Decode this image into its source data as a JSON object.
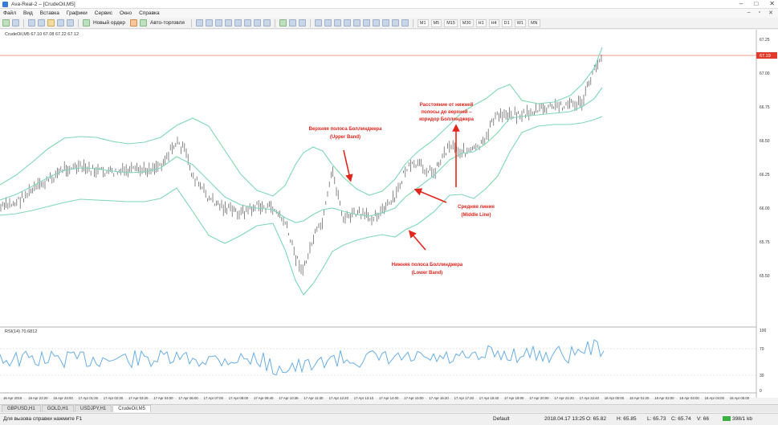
{
  "window": {
    "title": "Ava-Real-2 – [CrudeOil,M5]"
  },
  "menu": {
    "items": [
      "Файл",
      "Вид",
      "Вставка",
      "Графики",
      "Сервис",
      "Окно",
      "Справка"
    ]
  },
  "toolbar": {
    "new_order_label": "Новый ордер",
    "autotrade_label": "Авто-торговля",
    "timeframes": [
      "M1",
      "M5",
      "M15",
      "M30",
      "H1",
      "H4",
      "D1",
      "W1",
      "MN"
    ]
  },
  "chart": {
    "info_line": "CrudeOil,M5 67.10 67.08 67.22 67.12",
    "indicator_label": "RSI(14) 70.6812",
    "current_price": "67.19",
    "price_ticks": [
      "67.25",
      "67.00",
      "66.75",
      "66.50",
      "66.25",
      "66.00",
      "65.75",
      "65.50"
    ],
    "rsi_ticks": [
      "100",
      "70",
      "30",
      "0"
    ],
    "time_ticks": [
      "16 Apr 2018",
      "16 Apr 22:20",
      "16 Apr 23:00",
      "17 Apr 01:35",
      "17 Apr 02:30",
      "17 Apr 03:20",
      "17 Apr 04:00",
      "17 Apr 06:00",
      "17 Apr 07:00",
      "17 Apr 08:00",
      "17 Apr 09:40",
      "17 Apr 10:35",
      "17 Apr 11:30",
      "17 Apr 12:20",
      "17 Apr 13:10",
      "17 Apr 14:00",
      "17 Apr 15:00",
      "17 Apr 16:20",
      "17 Apr 17:30",
      "17 Apr 18:40",
      "17 Apr 19:00",
      "17 Apr 20:00",
      "17 Apr 21:20",
      "17 Apr 22:40",
      "18 Apr 00:00",
      "18 Apr 01:20",
      "18 Apr 02:00",
      "18 Apr 03:00",
      "18 Apr 04:00",
      "18 Apr 05:00"
    ],
    "annotations": {
      "upper": [
        "Верхняя полоса Боллинджера",
        "(Upper Band)"
      ],
      "middle": [
        "Средняя линия",
        "(Middle Line)"
      ],
      "lower": [
        "Нижняя полоса Боллинджера",
        "(Lower Band)"
      ],
      "corridor": [
        "Расстояние от нижней",
        "полосы до верхней –",
        "коридор Боллинджера"
      ]
    },
    "colors": {
      "bands": "#7fd8b4",
      "candles": "#555555",
      "arrows": "#e3261d",
      "rsi": "#6aaee6",
      "price_line": "#e87a6a"
    }
  },
  "tabs": [
    "GBPUSD,H1",
    "GOLD,H1",
    "USDJPY,H1",
    "CrudeOil,M5"
  ],
  "active_tab": "CrudeOil,M5",
  "status": {
    "help": "Для вызова справки нажмите F1",
    "profile": "Default",
    "datetime": "2018.04.17 13:25",
    "open": "O: 65.82",
    "high": "H: 65.85",
    "low": "L: 65.73",
    "close": "C: 65.74",
    "volume": "V: 66",
    "traffic": "398/1 kb"
  }
}
